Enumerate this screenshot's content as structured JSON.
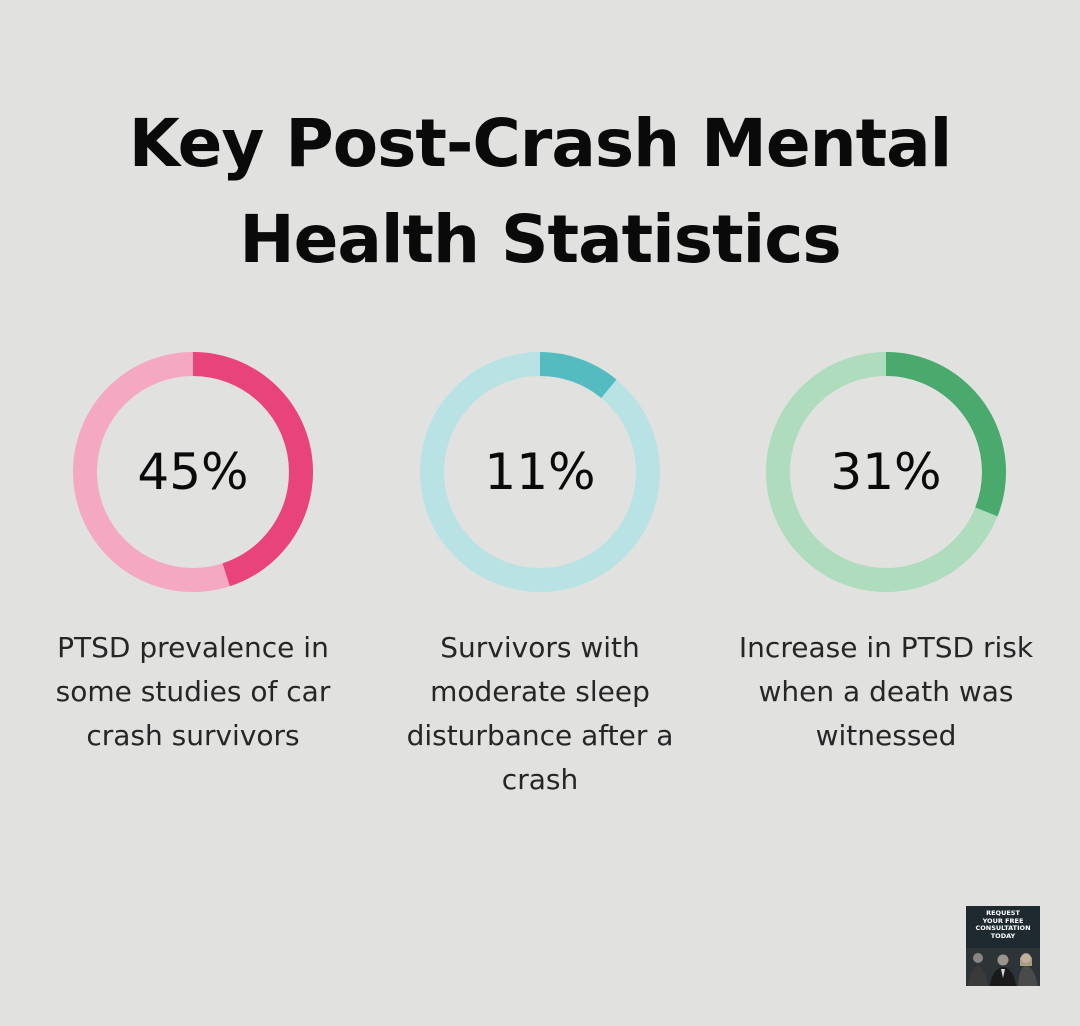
{
  "title_lines": [
    "Key Post-Crash Mental",
    "Health Statistics"
  ],
  "chart_data": {
    "type": "pie",
    "items": [
      {
        "value": 45,
        "label": "45%",
        "description_lines": [
          "PTSD prevalence in",
          "some studies of car",
          "crash survivors"
        ],
        "color": "#e8437a",
        "track_color": "#f4a8c2"
      },
      {
        "value": 11,
        "label": "11%",
        "description_lines": [
          "Survivors with",
          "moderate sleep",
          "disturbance after a",
          "crash"
        ],
        "color": "#54bcc0",
        "track_color": "#b8e2e4"
      },
      {
        "value": 31,
        "label": "31%",
        "description_lines": [
          "Increase in PTSD risk",
          "when a death was",
          "witnessed"
        ],
        "color": "#4aa96c",
        "track_color": "#aedcbd"
      }
    ]
  },
  "cta": {
    "lines": [
      "REQUEST",
      "YOUR FREE",
      "CONSULTATION",
      "TODAY"
    ],
    "icon": "consultation-banner-photo"
  }
}
